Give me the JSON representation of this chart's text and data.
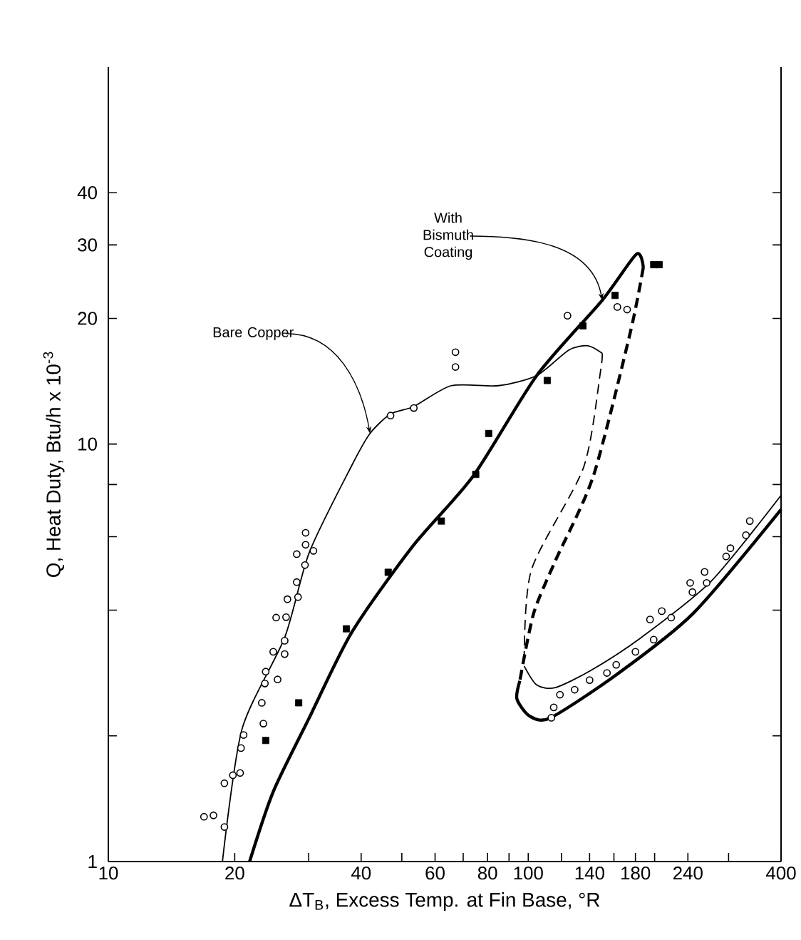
{
  "chart_data": {
    "type": "line",
    "xlabel": "ΔT$_{B}$, Excess Temp. at Fin Base, °R",
    "ylabel": "Q, Heat Duty, Btu/h x 10$^{-3}$",
    "log": "xy",
    "xlim": [
      10,
      400
    ],
    "ylim": [
      1,
      80
    ],
    "xticks": [
      10,
      20,
      {
        "value": 30,
        "label": null
      },
      40,
      {
        "value": 50,
        "label": null
      },
      60,
      {
        "value": 70,
        "label": null
      },
      80,
      {
        "value": 90,
        "label": null
      },
      100,
      {
        "value": 120,
        "label": null
      },
      140,
      {
        "value": 160,
        "label": null
      },
      180,
      {
        "value": 200,
        "label": null
      },
      240,
      {
        "value": 300,
        "label": null
      },
      400
    ],
    "yticks": [
      1,
      {
        "value": 2,
        "label": null
      },
      {
        "value": 4,
        "label": null
      },
      {
        "value": 6,
        "label": null
      },
      {
        "value": 8,
        "label": null
      },
      10,
      20,
      30,
      40
    ],
    "series": [
      {
        "color": "#000000",
        "line_style": "solid",
        "marker": "none",
        "x": [
          18.7,
          20.8,
          26.3,
          30.1,
          37.9,
          42,
          47,
          53.4,
          65.6,
          84.9,
          104.8,
          125,
          138.8,
          150
        ],
        "values": [
          1,
          2.07,
          3.44,
          5.5,
          8.84,
          10.6,
          11.8,
          12.3,
          13.8,
          13.8,
          14.6,
          16.8,
          17.2,
          16.5
        ]
      },
      {
        "color": "#000000",
        "line_style": "dashed",
        "marker": "none",
        "x": [
          150,
          148.6,
          135.5,
          101.6,
          97.8
        ],
        "values": [
          16.5,
          14.9,
          8.8,
          4.97,
          2.94
        ]
      },
      {
        "color": "#000000",
        "line_style": "solid",
        "marker": "none",
        "x": [
          97.8,
          104.7,
          116,
          141,
          185,
          273,
          400
        ],
        "values": [
          2.94,
          2.65,
          2.61,
          2.87,
          3.43,
          4.7,
          7.54
        ]
      },
      {
        "color": "#000000",
        "line_style": "solid",
        "marker": "none",
        "x": [
          21.7,
          24.7,
          30.1,
          38,
          53,
          74,
          104.8,
          150,
          181,
          188
        ],
        "values": [
          1,
          1.47,
          2.21,
          3.54,
          5.68,
          8.39,
          14.6,
          22.1,
          28.5,
          26.5
        ]
      },
      {
        "color": "#000000",
        "line_style": "dashed",
        "marker": "none",
        "x": [
          188,
          175,
          143,
          116,
          103,
          95.5
        ],
        "values": [
          26.5,
          18.5,
          8.4,
          5.25,
          3.93,
          2.71
        ]
      },
      {
        "color": "#000000",
        "line_style": "solid",
        "marker": "none",
        "x": [
          95.5,
          94,
          100.8,
          113,
          162,
          247,
          400
        ],
        "values": [
          2.71,
          2.45,
          2.23,
          2.21,
          2.8,
          3.93,
          6.97
        ]
      },
      {
        "type": "scatter",
        "color": "#000000",
        "marker": "circle",
        "x": [
          16.9,
          17.8,
          18.9,
          18.9,
          19.8,
          20.6,
          20.7,
          21,
          23.4,
          23.2,
          23.6,
          23.7,
          25.3,
          24.7,
          26.3,
          26.3,
          25.1,
          26.5,
          26.7,
          28.3,
          28.1,
          29.4,
          28.1,
          29.5,
          30.8,
          29.5,
          47,
          53.4,
          67.1,
          67.1,
          124,
          163,
          172,
          113.5,
          115,
          119,
          129,
          140,
          154,
          162,
          180,
          199,
          195,
          208,
          219,
          243,
          246,
          263,
          266,
          296,
          303,
          337,
          330
        ],
        "values": [
          1.28,
          1.29,
          1.21,
          1.54,
          1.61,
          1.63,
          1.87,
          2.01,
          2.14,
          2.4,
          2.67,
          2.85,
          2.73,
          3.18,
          3.14,
          3.38,
          3.84,
          3.85,
          4.25,
          4.3,
          4.67,
          5.13,
          5.45,
          5.74,
          5.55,
          6.13,
          11.7,
          12.2,
          16.6,
          15.3,
          20.3,
          21.3,
          21,
          2.21,
          2.34,
          2.51,
          2.58,
          2.72,
          2.83,
          2.96,
          3.18,
          3.4,
          3.8,
          3.98,
          3.84,
          4.65,
          4.42,
          4.94,
          4.65,
          5.38,
          5.63,
          6.54,
          6.05
        ]
      },
      {
        "type": "scatter",
        "color": "#000000",
        "marker": "square",
        "x": [
          23.7,
          28.4,
          36.9,
          46.4,
          62.1,
          75,
          80.5,
          111,
          135,
          161,
          199,
          205
        ],
        "values": [
          1.95,
          2.4,
          3.61,
          4.93,
          6.54,
          8.46,
          10.6,
          14.2,
          19.2,
          22.7,
          26.9,
          26.9
        ]
      }
    ],
    "annotations": [
      {
        "text": "Bare Copper",
        "x": 42,
        "y": 10.6
      },
      {
        "text": "With Bismuth Coating",
        "x": 150,
        "y": 22.1
      }
    ]
  }
}
